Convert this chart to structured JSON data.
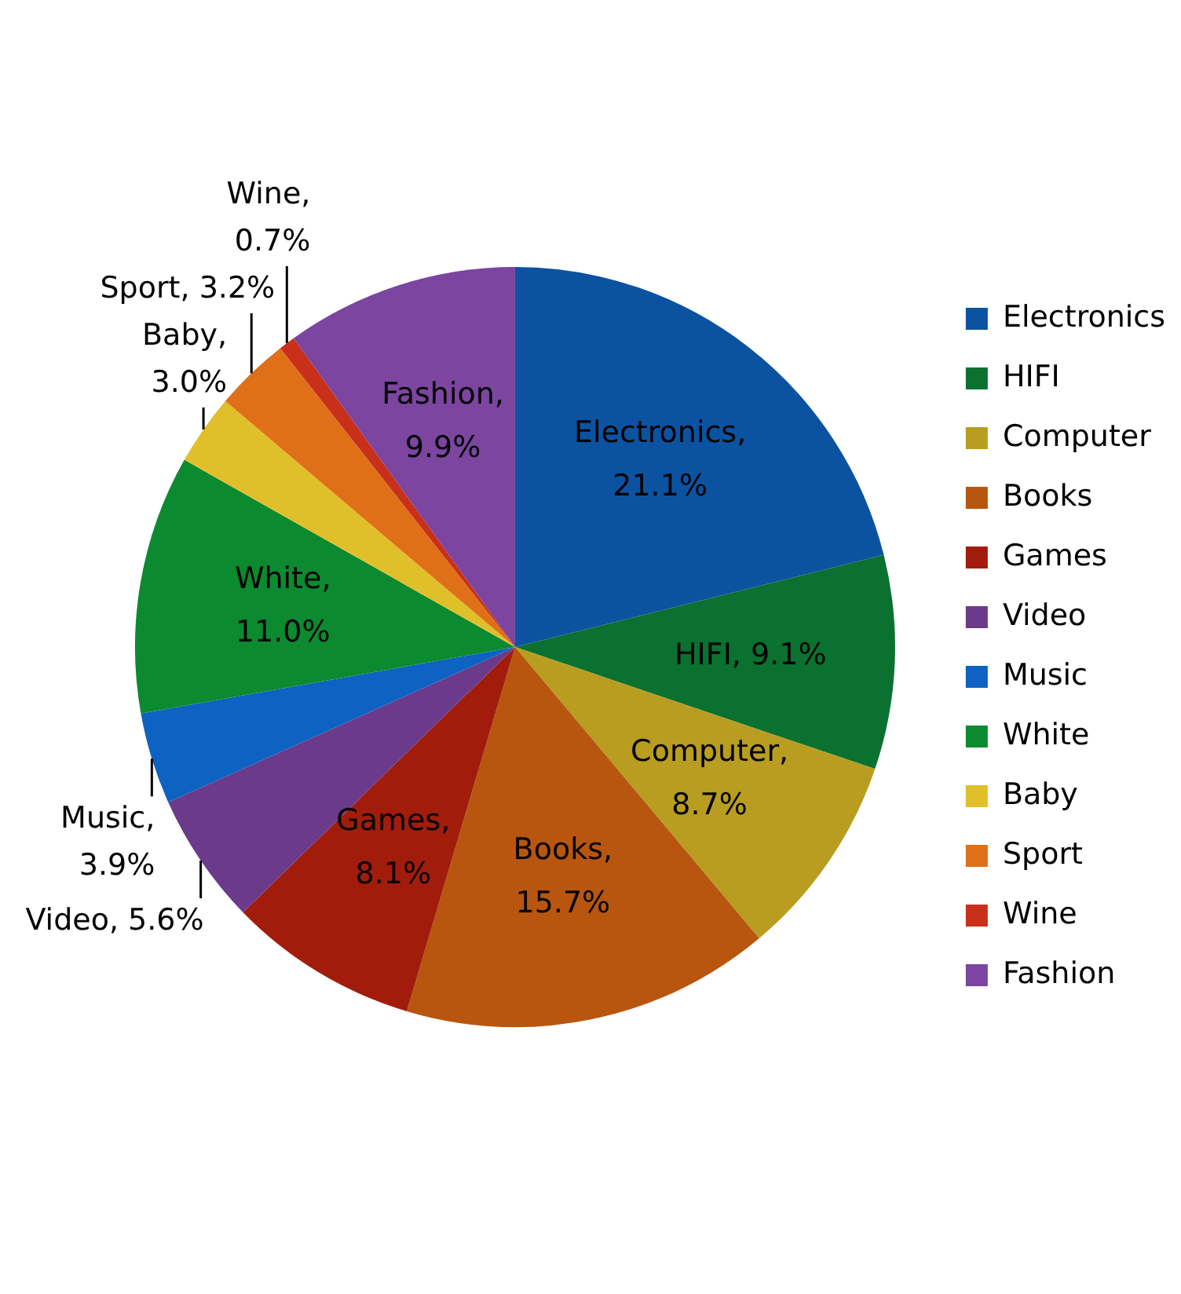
{
  "chart_data": {
    "type": "pie",
    "categories": [
      "Electronics",
      "HIFI",
      "Computer",
      "Books",
      "Games",
      "Video",
      "Music",
      "White",
      "Baby",
      "Sport",
      "Wine",
      "Fashion"
    ],
    "values": [
      21.1,
      9.1,
      8.7,
      15.7,
      8.1,
      5.6,
      3.9,
      11.0,
      3.0,
      3.2,
      0.7,
      9.9
    ],
    "colors": [
      "#0b53a0",
      "#0a7130",
      "#b89d20",
      "#b8560f",
      "#a21c0b",
      "#6b3a8a",
      "#0d62c2",
      "#0b8a30",
      "#e0c02a",
      "#e07017",
      "#c8301a",
      "#7b45a0"
    ],
    "value_labels": [
      "Electronics, 21.1%",
      "HIFI, 9.1%",
      "Computer, 8.7%",
      "Books, 15.7%",
      "Games, 8.1%",
      "Video, 5.6%",
      "Music, 3.9%",
      "White, 11.0%",
      "Baby, 3.0%",
      "Sport, 3.2%",
      "Wine, 0.7%",
      "Fashion, 9.9%"
    ],
    "legend": "right"
  }
}
